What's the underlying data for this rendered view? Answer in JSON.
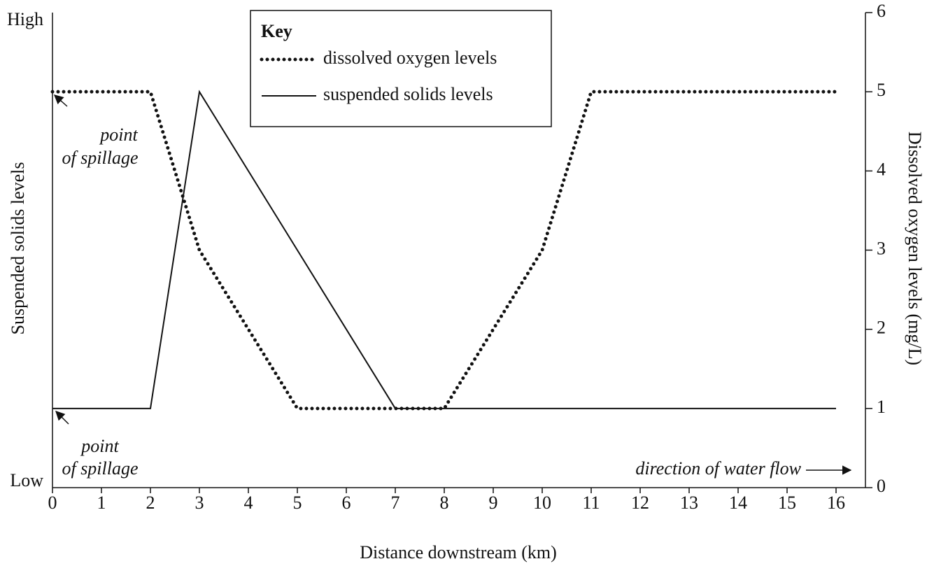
{
  "chart_data": {
    "type": "line",
    "xlabel": "Distance downstream (km)",
    "ylabel": "Suspended solids levels",
    "y2label": "Dissolved oxygen levels (mg/L)",
    "legend_title": "Key",
    "xlim": [
      0,
      16.6
    ],
    "xticks": [
      0,
      1,
      2,
      3,
      4,
      5,
      6,
      7,
      8,
      9,
      10,
      11,
      12,
      13,
      14,
      15,
      16
    ],
    "ylim": [
      0,
      6
    ],
    "yticks": [
      {
        "value": 0,
        "label": "Low"
      },
      {
        "value": 6,
        "label": "High"
      }
    ],
    "y2lim": [
      0,
      6
    ],
    "y2ticks": [
      0,
      1,
      2,
      3,
      4,
      5,
      6
    ],
    "series": [
      {
        "name": "dissolved oxygen levels",
        "color": "#111111",
        "style": "dotted",
        "axis": "y2",
        "x": [
          0,
          2,
          3,
          5,
          8,
          10,
          11,
          16
        ],
        "values": [
          5,
          5,
          3,
          1,
          1,
          3,
          5,
          5
        ]
      },
      {
        "name": "suspended solids levels",
        "color": "#111111",
        "style": "solid",
        "x": [
          0,
          2,
          3,
          7,
          16
        ],
        "values": [
          1,
          1,
          5,
          1,
          1
        ]
      }
    ],
    "annotations": [
      {
        "lines": [
          "point",
          "of spillage"
        ]
      },
      {
        "lines": [
          "point",
          "of spillage"
        ]
      },
      {
        "lines": [
          "direction of water flow"
        ]
      }
    ]
  }
}
